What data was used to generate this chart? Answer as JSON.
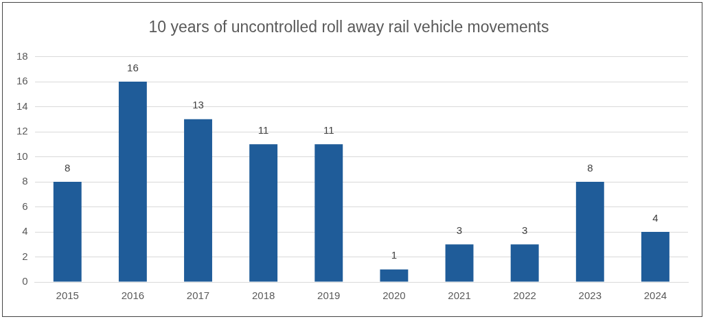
{
  "chart_data": {
    "type": "bar",
    "title": "10 years of uncontrolled roll away rail vehicle movements",
    "categories": [
      "2015",
      "2016",
      "2017",
      "2018",
      "2019",
      "2020",
      "2021",
      "2022",
      "2023",
      "2024"
    ],
    "values": [
      8,
      16,
      13,
      11,
      11,
      1,
      3,
      3,
      8,
      4
    ],
    "color": "#1f5c99",
    "ylim": [
      0,
      18
    ],
    "yticks": [
      0,
      2,
      4,
      6,
      8,
      10,
      12,
      14,
      16,
      18
    ],
    "grid": "y",
    "legend": false,
    "data_labels": true
  }
}
